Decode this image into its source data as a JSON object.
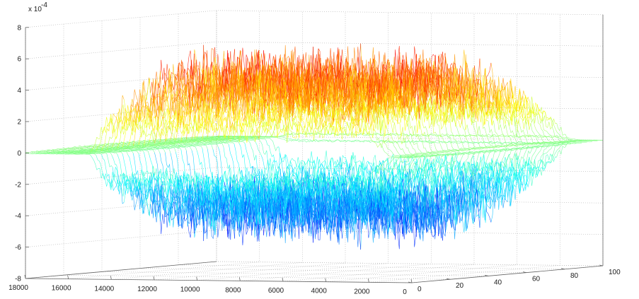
{
  "chart_data": {
    "type": "mesh",
    "title": "",
    "xlabel": "",
    "ylabel": "",
    "zlabel": "",
    "z_exponent_label": "x 10",
    "z_exponent_power": "-4",
    "x_ticks": [
      0,
      2000,
      4000,
      6000,
      8000,
      10000,
      12000,
      14000,
      16000,
      18000
    ],
    "y_ticks": [
      0,
      20,
      40,
      60,
      80,
      100
    ],
    "z_ticks": [
      -8,
      -6,
      -4,
      -2,
      0,
      2,
      4,
      6,
      8
    ],
    "z_tick_labels": [
      "-8",
      "-6",
      "-4",
      "-2",
      "0",
      "2",
      "4",
      "6",
      "8"
    ],
    "x_tick_labels": [
      "0",
      "2000",
      "4000",
      "6000",
      "8000",
      "10000",
      "12000",
      "14000",
      "16000",
      "18000"
    ],
    "y_tick_labels": [
      "0",
      "20",
      "40",
      "60",
      "80",
      "100"
    ],
    "xlim": [
      0,
      18000
    ],
    "ylim": [
      0,
      100
    ],
    "zlim": [
      -8,
      8
    ],
    "grid": true,
    "colormap": "jet",
    "signal_extent_x": [
      1000,
      15000
    ],
    "signal_peak_z_approx": 7,
    "signal_trough_z_approx": -7
  }
}
